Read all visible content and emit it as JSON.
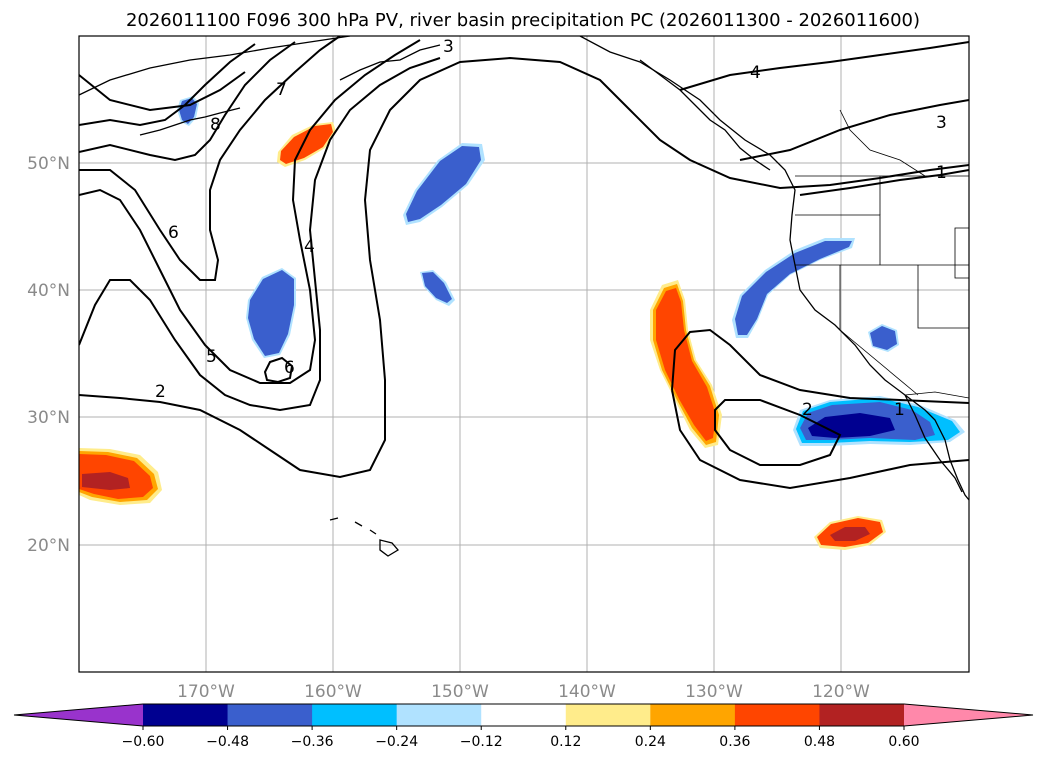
{
  "title": "2026011100 F096 300 hPa PV, river basin precipitation PC (2026011300 - 2026011600)",
  "lon_ticks": [
    "170°W",
    "160°W",
    "150°W",
    "140°W",
    "130°W",
    "120°W"
  ],
  "lat_ticks": [
    "50°N",
    "40°N",
    "30°N",
    "20°N"
  ],
  "colorbar": {
    "tick_labels": [
      "−0.60",
      "−0.48",
      "−0.36",
      "−0.24",
      "−0.12",
      "0.12",
      "0.24",
      "0.36",
      "0.48",
      "0.60"
    ],
    "colors": [
      "#9933cc",
      "#000090",
      "#3a5fcd",
      "#00bfff",
      "#b0e2ff",
      "#ffffff",
      "#ffec8b",
      "#ffa500",
      "#ff4500",
      "#b22222",
      "#ff88aa"
    ]
  },
  "contour_labels": [
    "7",
    "8",
    "6",
    "4",
    "5",
    "6",
    "2",
    "3",
    "4",
    "3",
    "1",
    "2",
    "1"
  ],
  "chart_data": {
    "type": "heatmap",
    "map_extent": {
      "lon": [
        -180,
        -110
      ],
      "lat": [
        10,
        60
      ]
    },
    "contour_field": "300 hPa PV",
    "fill_field": "river basin precipitation PC",
    "contour_levels": [
      1,
      2,
      3,
      4,
      5,
      6,
      7,
      8
    ],
    "fill_levels": [
      -0.6,
      -0.48,
      -0.36,
      -0.24,
      -0.12,
      0.12,
      0.24,
      0.36,
      0.48,
      0.6
    ],
    "colorbar_extend": "both",
    "grid": true
  }
}
